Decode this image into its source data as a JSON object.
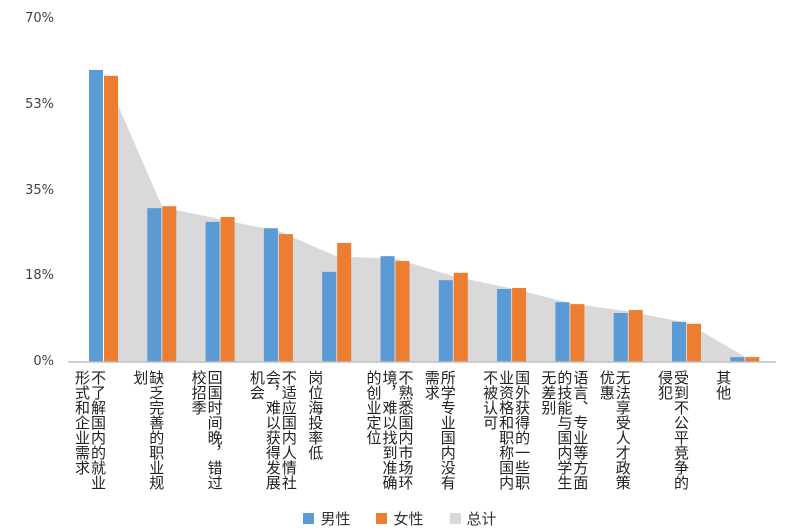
{
  "chart_data": {
    "type": "bar",
    "title": "",
    "xlabel": "",
    "ylabel": "",
    "ylim": [
      0,
      70
    ],
    "yticks": [
      "0%",
      "18%",
      "35%",
      "53%",
      "70%"
    ],
    "ytick_values": [
      0,
      17.5,
      35,
      52.5,
      70
    ],
    "grid": false,
    "legend_position": "bottom",
    "categories": [
      "不了解国内的就业形式和企业需求",
      "缺乏完善的职业规划",
      "回国时间晚，错过校招季",
      "不适应国内人情社会，难以获得发展机会",
      "岗位海投率低",
      "不熟悉国内市场环境，难以找到准确的创业定位",
      "所学专业国内没有需求",
      "国外获得的一些职业资格和职称国内不被认可",
      "语言、专业等方面的技能与国内学生无差别",
      "无法享受人才政策优惠",
      "受到不公平竞争的侵犯",
      "其他"
    ],
    "series": [
      {
        "name": "男性",
        "type": "bar",
        "color": "#5b9bd5",
        "values": [
          59.6,
          31.4,
          28.6,
          27.3,
          18.4,
          21.6,
          16.7,
          14.9,
          12.2,
          10.0,
          8.2,
          1.0
        ]
      },
      {
        "name": "女性",
        "type": "bar",
        "color": "#ed7d31",
        "values": [
          58.4,
          31.8,
          29.6,
          26.1,
          24.3,
          20.6,
          18.2,
          15.1,
          11.8,
          10.6,
          7.8,
          1.0
        ]
      },
      {
        "name": "总计",
        "type": "area",
        "color": "#d9d9d9",
        "values": [
          59.0,
          31.6,
          29.1,
          26.7,
          21.5,
          21.1,
          17.5,
          15.0,
          12.0,
          10.3,
          8.0,
          1.0
        ]
      }
    ]
  }
}
